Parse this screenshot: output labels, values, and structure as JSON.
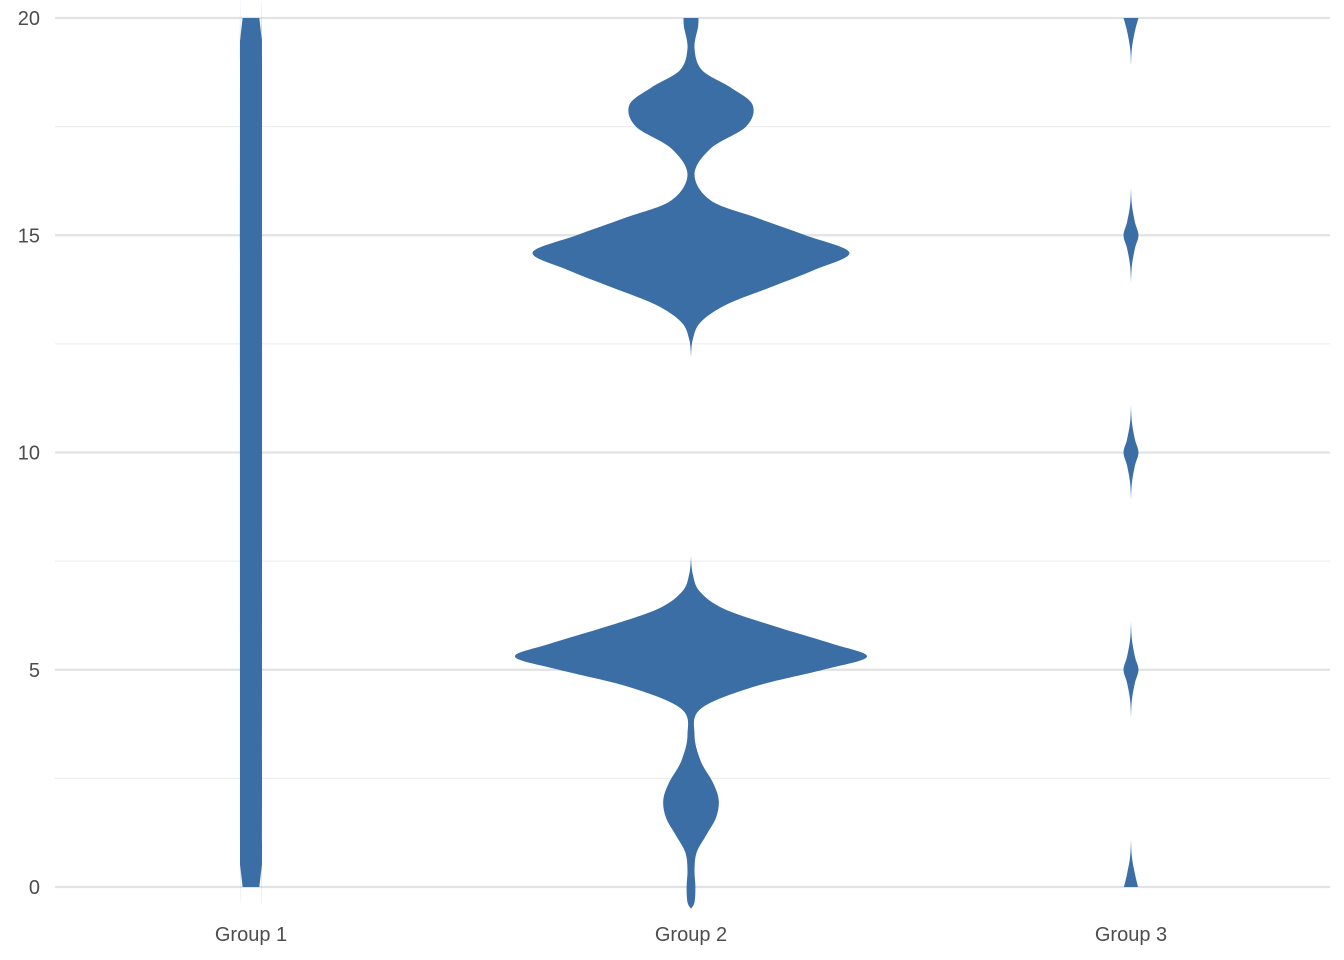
{
  "chart_data": {
    "type": "violin",
    "categories": [
      "Group 1",
      "Group 2",
      "Group 3"
    ],
    "ylim": [
      0,
      20
    ],
    "yticks": [
      "0",
      "5",
      "10",
      "15",
      "20"
    ],
    "grid": true,
    "legend": "none",
    "color": "#3a6ea5",
    "series": [
      {
        "category": "Group 1",
        "density_profile": [
          {
            "y": 0.0,
            "w": 0.19
          },
          {
            "y": 0.5,
            "w": 0.24
          },
          {
            "y": 1.0,
            "w": 0.25
          },
          {
            "y": 19.0,
            "w": 0.25
          },
          {
            "y": 19.5,
            "w": 0.24
          },
          {
            "y": 20.0,
            "w": 0.19
          }
        ]
      },
      {
        "category": "Group 2",
        "density_profile": [
          {
            "y": -0.5,
            "w": 0.0
          },
          {
            "y": -0.35,
            "w": 0.08
          },
          {
            "y": 0.0,
            "w": 0.1
          },
          {
            "y": 0.4,
            "w": 0.08
          },
          {
            "y": 0.8,
            "w": 0.13
          },
          {
            "y": 1.2,
            "w": 0.35
          },
          {
            "y": 1.6,
            "w": 0.57
          },
          {
            "y": 2.0,
            "w": 0.63
          },
          {
            "y": 2.4,
            "w": 0.5
          },
          {
            "y": 2.9,
            "w": 0.22
          },
          {
            "y": 3.5,
            "w": 0.08
          },
          {
            "y": 4.1,
            "w": 0.22
          },
          {
            "y": 4.6,
            "w": 1.4
          },
          {
            "y": 5.0,
            "w": 3.0
          },
          {
            "y": 5.3,
            "w": 4.0
          },
          {
            "y": 5.6,
            "w": 3.2
          },
          {
            "y": 6.0,
            "w": 1.9
          },
          {
            "y": 6.4,
            "w": 0.75
          },
          {
            "y": 6.8,
            "w": 0.2
          },
          {
            "y": 7.2,
            "w": 0.04
          },
          {
            "y": 7.6,
            "w": 0.0
          },
          {
            "y": 12.2,
            "w": 0.0
          },
          {
            "y": 12.6,
            "w": 0.04
          },
          {
            "y": 13.0,
            "w": 0.22
          },
          {
            "y": 13.4,
            "w": 0.8
          },
          {
            "y": 13.8,
            "w": 1.8
          },
          {
            "y": 14.2,
            "w": 2.8
          },
          {
            "y": 14.6,
            "w": 3.6
          },
          {
            "y": 15.0,
            "w": 2.6
          },
          {
            "y": 15.4,
            "w": 1.5
          },
          {
            "y": 15.8,
            "w": 0.45
          },
          {
            "y": 16.4,
            "w": 0.08
          },
          {
            "y": 17.0,
            "w": 0.45
          },
          {
            "y": 17.5,
            "w": 1.25
          },
          {
            "y": 18.0,
            "w": 1.4
          },
          {
            "y": 18.4,
            "w": 0.9
          },
          {
            "y": 18.8,
            "w": 0.25
          },
          {
            "y": 19.3,
            "w": 0.08
          },
          {
            "y": 19.8,
            "w": 0.16
          },
          {
            "y": 20.0,
            "w": 0.17
          }
        ]
      },
      {
        "category": "Group 3",
        "density_profile": [
          {
            "y": 0.0,
            "w": 0.16
          },
          {
            "y": 0.3,
            "w": 0.09
          },
          {
            "y": 0.7,
            "w": 0.02
          },
          {
            "y": 1.1,
            "w": 0.0
          },
          {
            "y": 3.9,
            "w": 0.0
          },
          {
            "y": 4.3,
            "w": 0.02
          },
          {
            "y": 4.7,
            "w": 0.09
          },
          {
            "y": 5.0,
            "w": 0.17
          },
          {
            "y": 5.3,
            "w": 0.09
          },
          {
            "y": 5.7,
            "w": 0.02
          },
          {
            "y": 6.1,
            "w": 0.0
          },
          {
            "y": 8.9,
            "w": 0.0
          },
          {
            "y": 9.3,
            "w": 0.02
          },
          {
            "y": 9.7,
            "w": 0.09
          },
          {
            "y": 10.0,
            "w": 0.17
          },
          {
            "y": 10.3,
            "w": 0.09
          },
          {
            "y": 10.7,
            "w": 0.02
          },
          {
            "y": 11.1,
            "w": 0.0
          },
          {
            "y": 13.9,
            "w": 0.0
          },
          {
            "y": 14.3,
            "w": 0.02
          },
          {
            "y": 14.7,
            "w": 0.09
          },
          {
            "y": 15.0,
            "w": 0.17
          },
          {
            "y": 15.3,
            "w": 0.09
          },
          {
            "y": 15.7,
            "w": 0.02
          },
          {
            "y": 16.1,
            "w": 0.0
          },
          {
            "y": 18.9,
            "w": 0.0
          },
          {
            "y": 19.3,
            "w": 0.02
          },
          {
            "y": 19.7,
            "w": 0.09
          },
          {
            "y": 20.0,
            "w": 0.17
          }
        ]
      }
    ]
  }
}
